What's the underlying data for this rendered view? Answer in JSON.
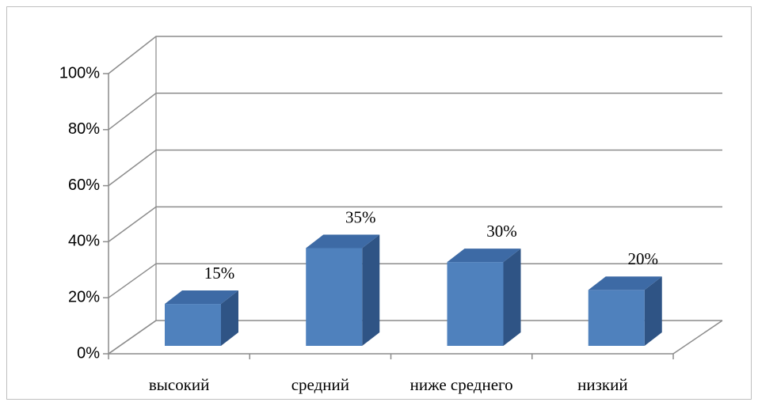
{
  "chart_data": {
    "type": "bar3d",
    "categories": [
      "высокий",
      "средний",
      "ниже среднего",
      "низкий"
    ],
    "values": [
      15,
      35,
      30,
      20
    ],
    "value_labels": [
      "15%",
      "35%",
      "30%",
      "20%"
    ],
    "color": "#4f81bd",
    "ylim": [
      0,
      100
    ],
    "yticks": [
      {
        "value": 0,
        "label": "0%"
      },
      {
        "value": 20,
        "label": "20%"
      },
      {
        "value": 40,
        "label": "40%"
      },
      {
        "value": 60,
        "label": "60%"
      },
      {
        "value": 80,
        "label": "80%"
      },
      {
        "value": 100,
        "label": "100%"
      }
    ],
    "grid": true
  }
}
